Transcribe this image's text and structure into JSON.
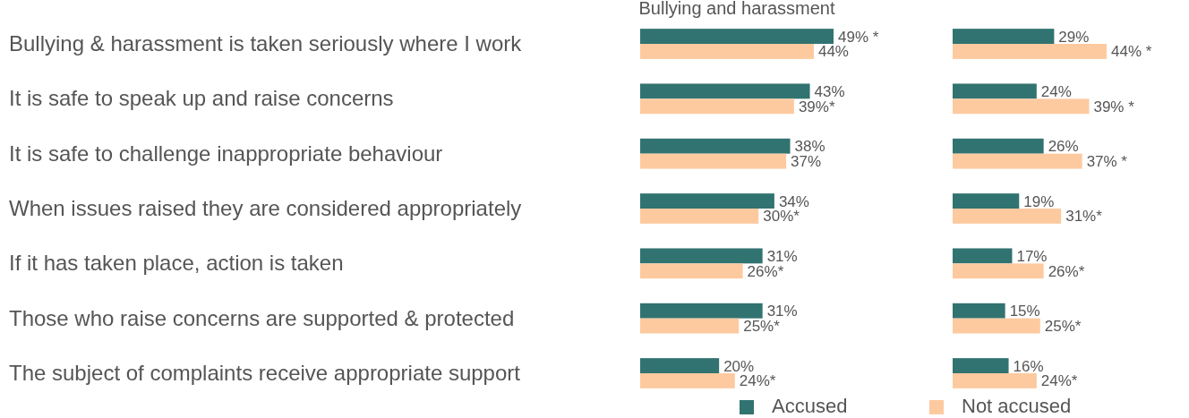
{
  "chart_data": [
    {
      "type": "bar",
      "orientation": "horizontal",
      "title": "Bullying and harassment",
      "categories": [
        "Bullying & harassment is taken seriously where I work",
        "It is safe to speak up and raise concerns",
        "It is safe to challenge inappropriate behaviour",
        "When issues raised they are considered appropriately",
        "If it has taken place, action is taken",
        "Those who raise concerns are supported & protected",
        "The subject of complaints receive appropriate support"
      ],
      "tick_labels": "y",
      "legend": false,
      "series": [
        {
          "color": "#317370",
          "values": [
            49,
            43,
            38,
            34,
            31,
            31,
            20
          ],
          "value_labels": [
            "49% *",
            "43%",
            "38%",
            "34%",
            "31%",
            "31%",
            "20%"
          ]
        },
        {
          "color": "#fdcaa0",
          "values": [
            44,
            39,
            37,
            30,
            26,
            25,
            24
          ],
          "value_labels": [
            "44%",
            "39%*",
            "37%",
            "30%*",
            "26%*",
            "25%*",
            "24%*"
          ]
        }
      ]
    },
    {
      "type": "bar",
      "orientation": "horizontal",
      "categories": [
        null,
        null,
        null,
        null,
        null,
        null,
        null
      ],
      "tick_labels": false,
      "legend": "bottom",
      "series": [
        {
          "name": "Accused",
          "color": "#317370",
          "values": [
            29,
            24,
            26,
            19,
            17,
            15,
            16
          ],
          "value_labels": [
            "29%",
            "24%",
            "26%",
            "19%",
            "17%",
            "15%",
            "16%"
          ]
        },
        {
          "name": "Not accused",
          "color": "#fdcaa0",
          "values": [
            44,
            39,
            37,
            31,
            26,
            25,
            24
          ],
          "value_labels": [
            "44% *",
            "39% *",
            "37% *",
            "31%*",
            "26%*",
            "25%*",
            "24%*"
          ]
        }
      ]
    }
  ]
}
